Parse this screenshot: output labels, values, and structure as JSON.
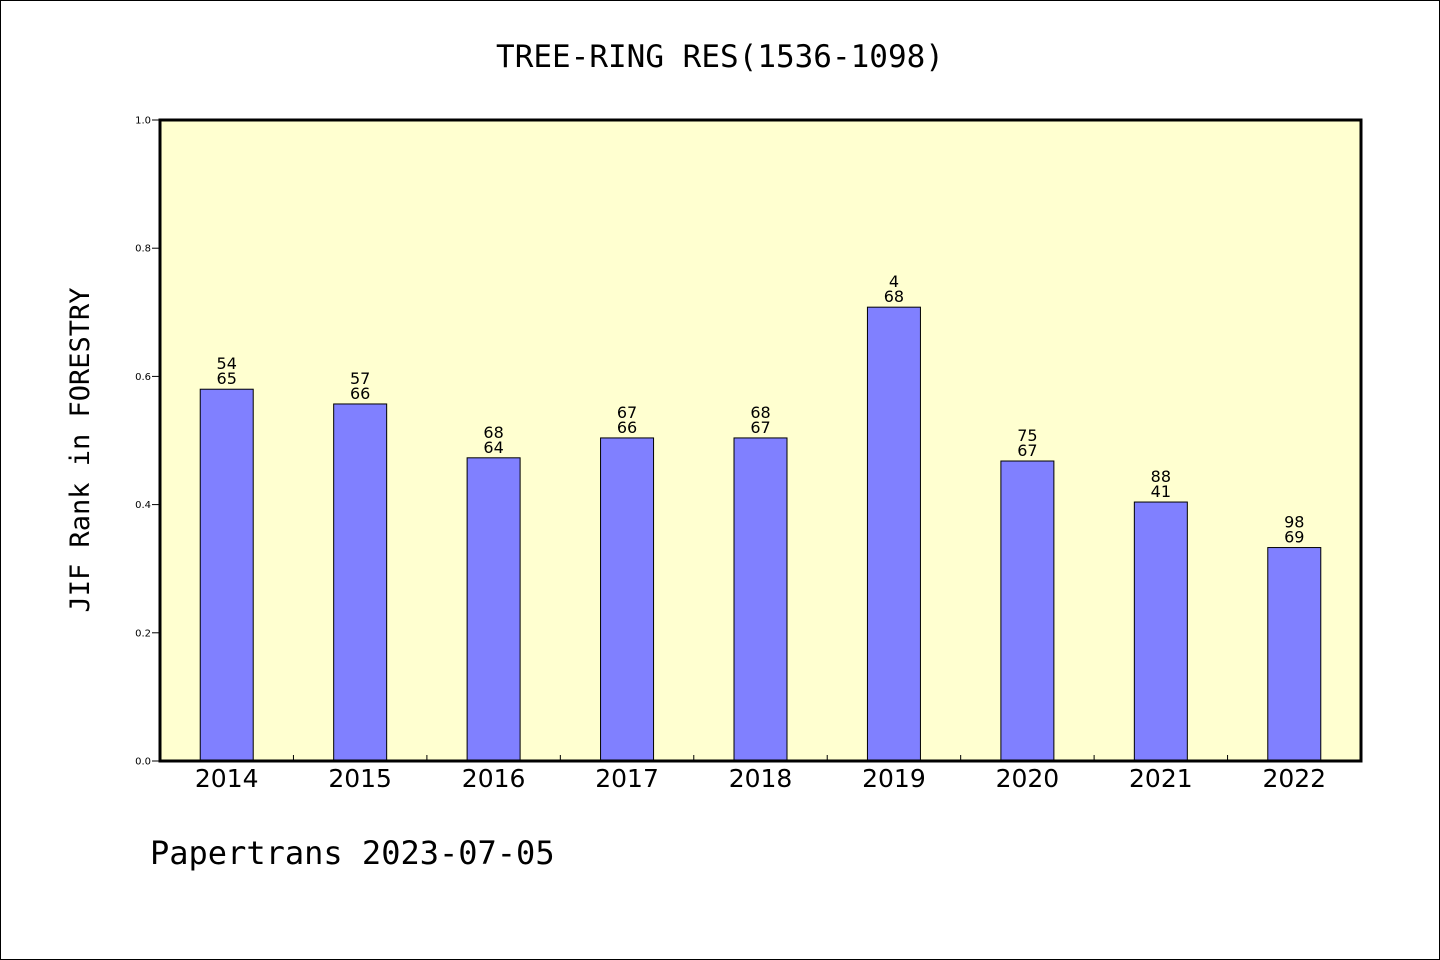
{
  "chart_data": {
    "type": "bar",
    "title": "TREE-RING RES(1536-1098)",
    "ylabel": "JIF Rank in FORESTRY",
    "xlabel": "",
    "categories": [
      "2014",
      "2015",
      "2016",
      "2017",
      "2018",
      "2019",
      "2020",
      "2021",
      "2022"
    ],
    "values": [
      0.58,
      0.557,
      0.473,
      0.504,
      0.504,
      0.708,
      0.468,
      0.404,
      0.333
    ],
    "bar_labels": [
      [
        "54",
        "65"
      ],
      [
        "57",
        "66"
      ],
      [
        "68",
        "64"
      ],
      [
        "67",
        "66"
      ],
      [
        "68",
        "67"
      ],
      [
        "4",
        "68"
      ],
      [
        "75",
        "67"
      ],
      [
        "88",
        "41"
      ],
      [
        "98",
        "69"
      ]
    ],
    "ylim": [
      0,
      1.0
    ],
    "yticks": [
      "0.0",
      "0.2",
      "0.4",
      "0.6",
      "0.8",
      "1.0"
    ],
    "grid": false,
    "colors": {
      "plot_background": "#ffffd0",
      "bar_fill": "#8080ff",
      "bar_edge": "#000000"
    }
  },
  "footer": "Papertrans 2023-07-05"
}
